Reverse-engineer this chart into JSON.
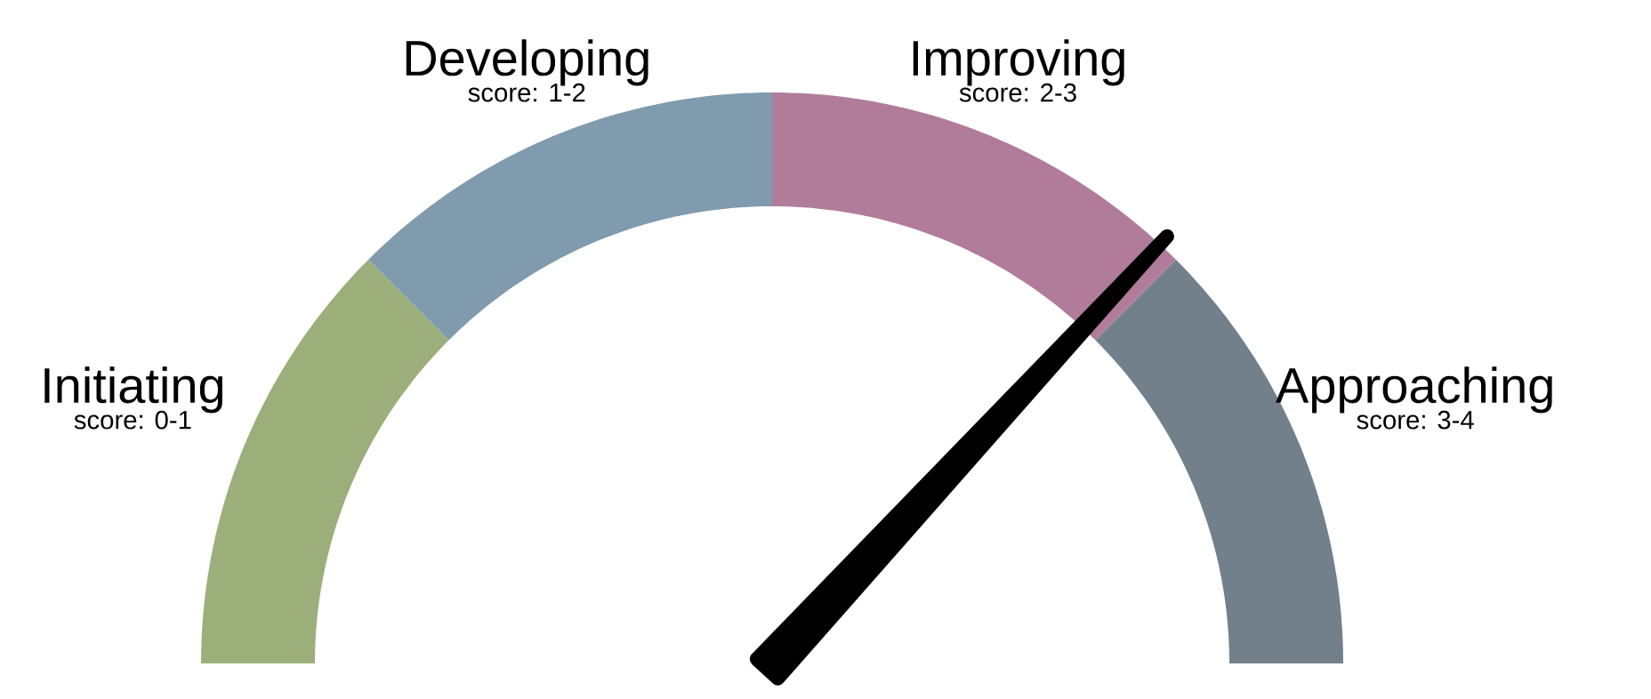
{
  "chart_data": {
    "type": "donut",
    "categories": [
      "Initiating",
      "Developing",
      "Improving",
      "Approaching"
    ],
    "values": [
      25,
      25,
      25,
      25
    ],
    "colors": [
      "#9caf7a",
      "#7f9bad",
      "#b07c9a",
      "#72808b"
    ],
    "annotations": [
      "score: 0-1",
      "score: 1-2",
      "score: 2-3",
      "score: 3-4"
    ],
    "needle": "Improving"
  }
}
